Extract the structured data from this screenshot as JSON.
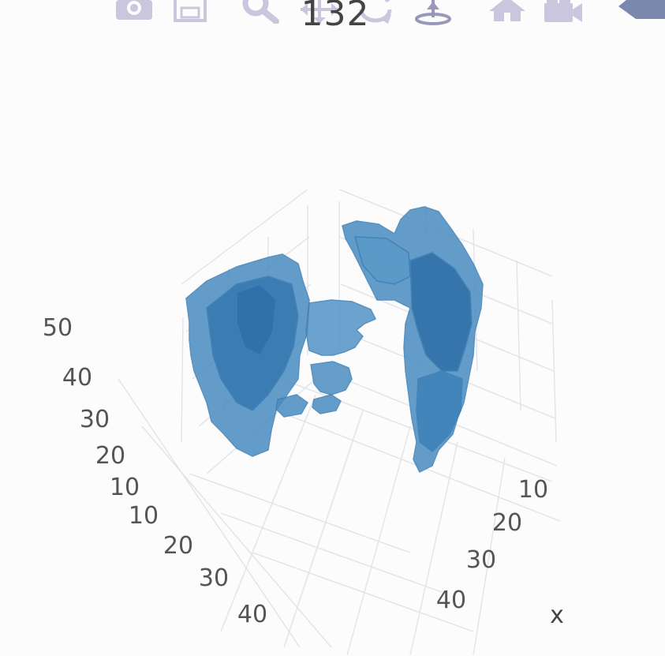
{
  "title": "132",
  "modebar": {
    "buttons": [
      {
        "name": "camera-icon",
        "tip": "Download plot as a png"
      },
      {
        "name": "save-icon",
        "tip": "Save"
      },
      {
        "name": "zoom-icon",
        "tip": "Zoom"
      },
      {
        "name": "pan-icon",
        "tip": "Pan"
      },
      {
        "name": "orbit-rotate-icon",
        "tip": "Orbital rotation"
      },
      {
        "name": "turntable-icon",
        "tip": "Turntable rotation"
      },
      {
        "name": "home-icon",
        "tip": "Reset camera to default"
      },
      {
        "name": "camera-last-save-icon",
        "tip": "Reset camera to last save"
      },
      {
        "name": "plotly-logo-icon",
        "tip": "Produced with Plotly"
      }
    ],
    "icon_color": "#c9c6dd",
    "logo_color": "#7b88ae"
  },
  "chart_data": {
    "type": "mesh3d",
    "title": "132",
    "axes": {
      "x": {
        "title": "x",
        "ticks": [
          "10",
          "20",
          "30",
          "40"
        ]
      },
      "y": {
        "title": "",
        "ticks": [
          "10",
          "20",
          "30",
          "40"
        ]
      },
      "z": {
        "title": "",
        "ticks": [
          "10",
          "20",
          "30",
          "40",
          "50"
        ]
      }
    },
    "series": [
      {
        "color": "#3d7fb5",
        "opacity": 0.85
      }
    ],
    "grid": true
  }
}
